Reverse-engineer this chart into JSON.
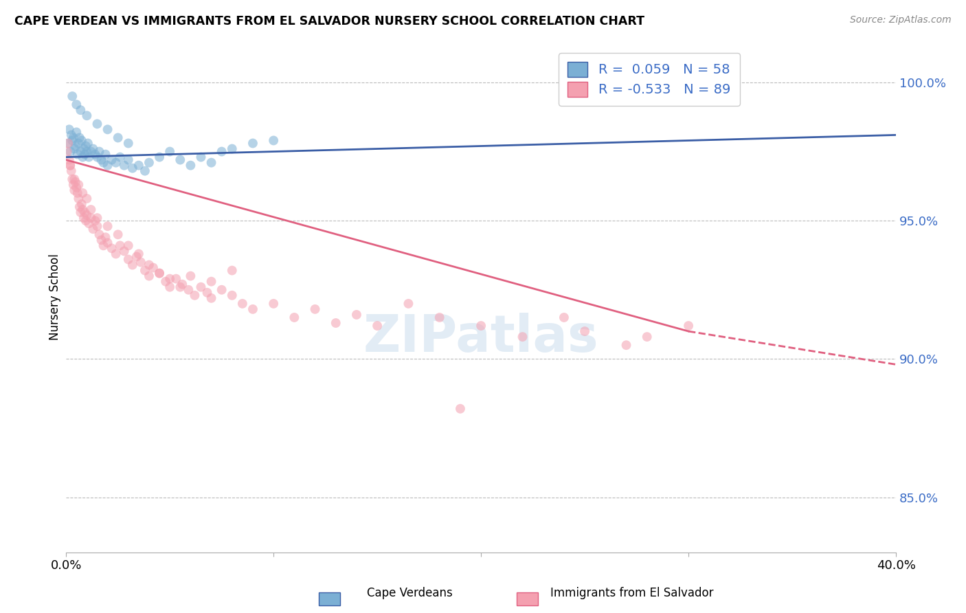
{
  "title": "CAPE VERDEAN VS IMMIGRANTS FROM EL SALVADOR NURSERY SCHOOL CORRELATION CHART",
  "source": "Source: ZipAtlas.com",
  "ylabel": "Nursery School",
  "xlim": [
    0.0,
    40.0
  ],
  "ylim": [
    83.0,
    101.5
  ],
  "blue_R": 0.059,
  "blue_N": 58,
  "pink_R": -0.533,
  "pink_N": 89,
  "blue_color": "#7BAFD4",
  "pink_color": "#F4A0B0",
  "blue_line_color": "#3B5EA6",
  "pink_line_color": "#E06080",
  "legend_label_blue": "Cape Verdeans",
  "legend_label_pink": "Immigrants from El Salvador",
  "blue_line_x0": 0.0,
  "blue_line_y0": 97.3,
  "blue_line_x1": 40.0,
  "blue_line_y1": 98.1,
  "pink_line_x0": 0.0,
  "pink_line_y0": 97.2,
  "pink_line_x1_solid": 30.0,
  "pink_line_y1_solid": 91.0,
  "pink_line_x1_dash": 40.0,
  "pink_line_y1_dash": 89.8,
  "blue_scatter_x": [
    0.1,
    0.15,
    0.2,
    0.25,
    0.3,
    0.35,
    0.4,
    0.45,
    0.5,
    0.55,
    0.6,
    0.65,
    0.7,
    0.75,
    0.8,
    0.85,
    0.9,
    0.95,
    1.0,
    1.05,
    1.1,
    1.2,
    1.3,
    1.4,
    1.5,
    1.6,
    1.7,
    1.8,
    1.9,
    2.0,
    2.2,
    2.4,
    2.6,
    2.8,
    3.0,
    3.2,
    3.5,
    3.8,
    4.0,
    4.5,
    5.0,
    5.5,
    6.0,
    6.5,
    7.0,
    7.5,
    8.0,
    9.0,
    10.0,
    28.0,
    0.3,
    0.5,
    0.7,
    1.0,
    1.5,
    2.0,
    2.5,
    3.0
  ],
  "blue_scatter_y": [
    97.8,
    98.3,
    97.5,
    98.1,
    97.9,
    98.0,
    97.6,
    97.7,
    98.2,
    97.4,
    97.8,
    98.0,
    97.5,
    97.9,
    97.3,
    97.6,
    97.4,
    97.7,
    97.5,
    97.8,
    97.3,
    97.5,
    97.6,
    97.4,
    97.3,
    97.5,
    97.2,
    97.1,
    97.4,
    97.0,
    97.2,
    97.1,
    97.3,
    97.0,
    97.2,
    96.9,
    97.0,
    96.8,
    97.1,
    97.3,
    97.5,
    97.2,
    97.0,
    97.3,
    97.1,
    97.5,
    97.6,
    97.8,
    97.9,
    100.2,
    99.5,
    99.2,
    99.0,
    98.8,
    98.5,
    98.3,
    98.0,
    97.8
  ],
  "pink_scatter_x": [
    0.05,
    0.1,
    0.15,
    0.2,
    0.25,
    0.3,
    0.35,
    0.4,
    0.45,
    0.5,
    0.55,
    0.6,
    0.65,
    0.7,
    0.75,
    0.8,
    0.85,
    0.9,
    0.95,
    1.0,
    1.1,
    1.2,
    1.3,
    1.4,
    1.5,
    1.6,
    1.7,
    1.8,
    1.9,
    2.0,
    2.2,
    2.4,
    2.6,
    2.8,
    3.0,
    3.2,
    3.4,
    3.6,
    3.8,
    4.0,
    4.2,
    4.5,
    4.8,
    5.0,
    5.3,
    5.6,
    5.9,
    6.2,
    6.5,
    6.8,
    7.0,
    7.5,
    8.0,
    8.5,
    9.0,
    10.0,
    11.0,
    12.0,
    13.0,
    14.0,
    15.0,
    16.5,
    18.0,
    20.0,
    22.0,
    24.0,
    25.0,
    27.0,
    28.0,
    30.0,
    0.2,
    0.4,
    0.6,
    0.8,
    1.0,
    1.2,
    1.5,
    2.0,
    2.5,
    3.0,
    3.5,
    4.0,
    4.5,
    5.0,
    5.5,
    6.0,
    7.0,
    8.0,
    19.0
  ],
  "pink_scatter_y": [
    97.5,
    97.8,
    97.2,
    97.0,
    96.8,
    96.5,
    96.3,
    96.1,
    96.4,
    96.2,
    96.0,
    95.8,
    95.5,
    95.3,
    95.6,
    95.4,
    95.1,
    95.3,
    95.0,
    95.2,
    94.9,
    95.1,
    94.7,
    95.0,
    94.8,
    94.5,
    94.3,
    94.1,
    94.4,
    94.2,
    94.0,
    93.8,
    94.1,
    93.9,
    93.6,
    93.4,
    93.7,
    93.5,
    93.2,
    93.0,
    93.3,
    93.1,
    92.8,
    92.6,
    92.9,
    92.7,
    92.5,
    92.3,
    92.6,
    92.4,
    92.2,
    92.5,
    92.3,
    92.0,
    91.8,
    92.0,
    91.5,
    91.8,
    91.3,
    91.6,
    91.2,
    92.0,
    91.5,
    91.2,
    90.8,
    91.5,
    91.0,
    90.5,
    90.8,
    91.2,
    97.0,
    96.5,
    96.3,
    96.0,
    95.8,
    95.4,
    95.1,
    94.8,
    94.5,
    94.1,
    93.8,
    93.4,
    93.1,
    92.9,
    92.6,
    93.0,
    92.8,
    93.2,
    88.2
  ]
}
